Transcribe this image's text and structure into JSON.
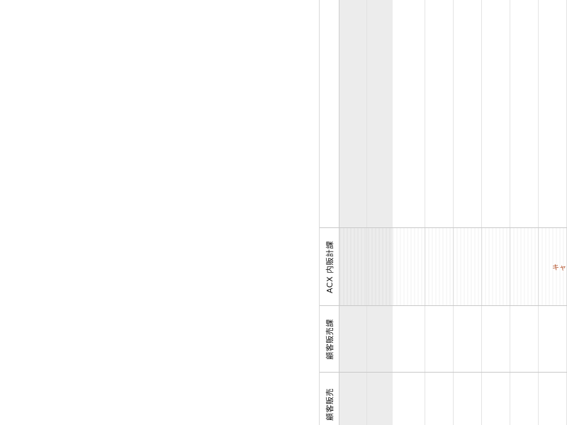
{
  "rows": [
    {
      "label": "ACX 内販計課"
    },
    {
      "label": "顧客販売課"
    },
    {
      "label": "顧客販売"
    }
  ],
  "events": [
    {
      "text": "キャ"
    }
  ],
  "colors": {
    "gray_column": "#ececec",
    "event_text": "#b5532b",
    "grid_line": "#e4e4e4",
    "row_divider": "#c9c9c9"
  }
}
